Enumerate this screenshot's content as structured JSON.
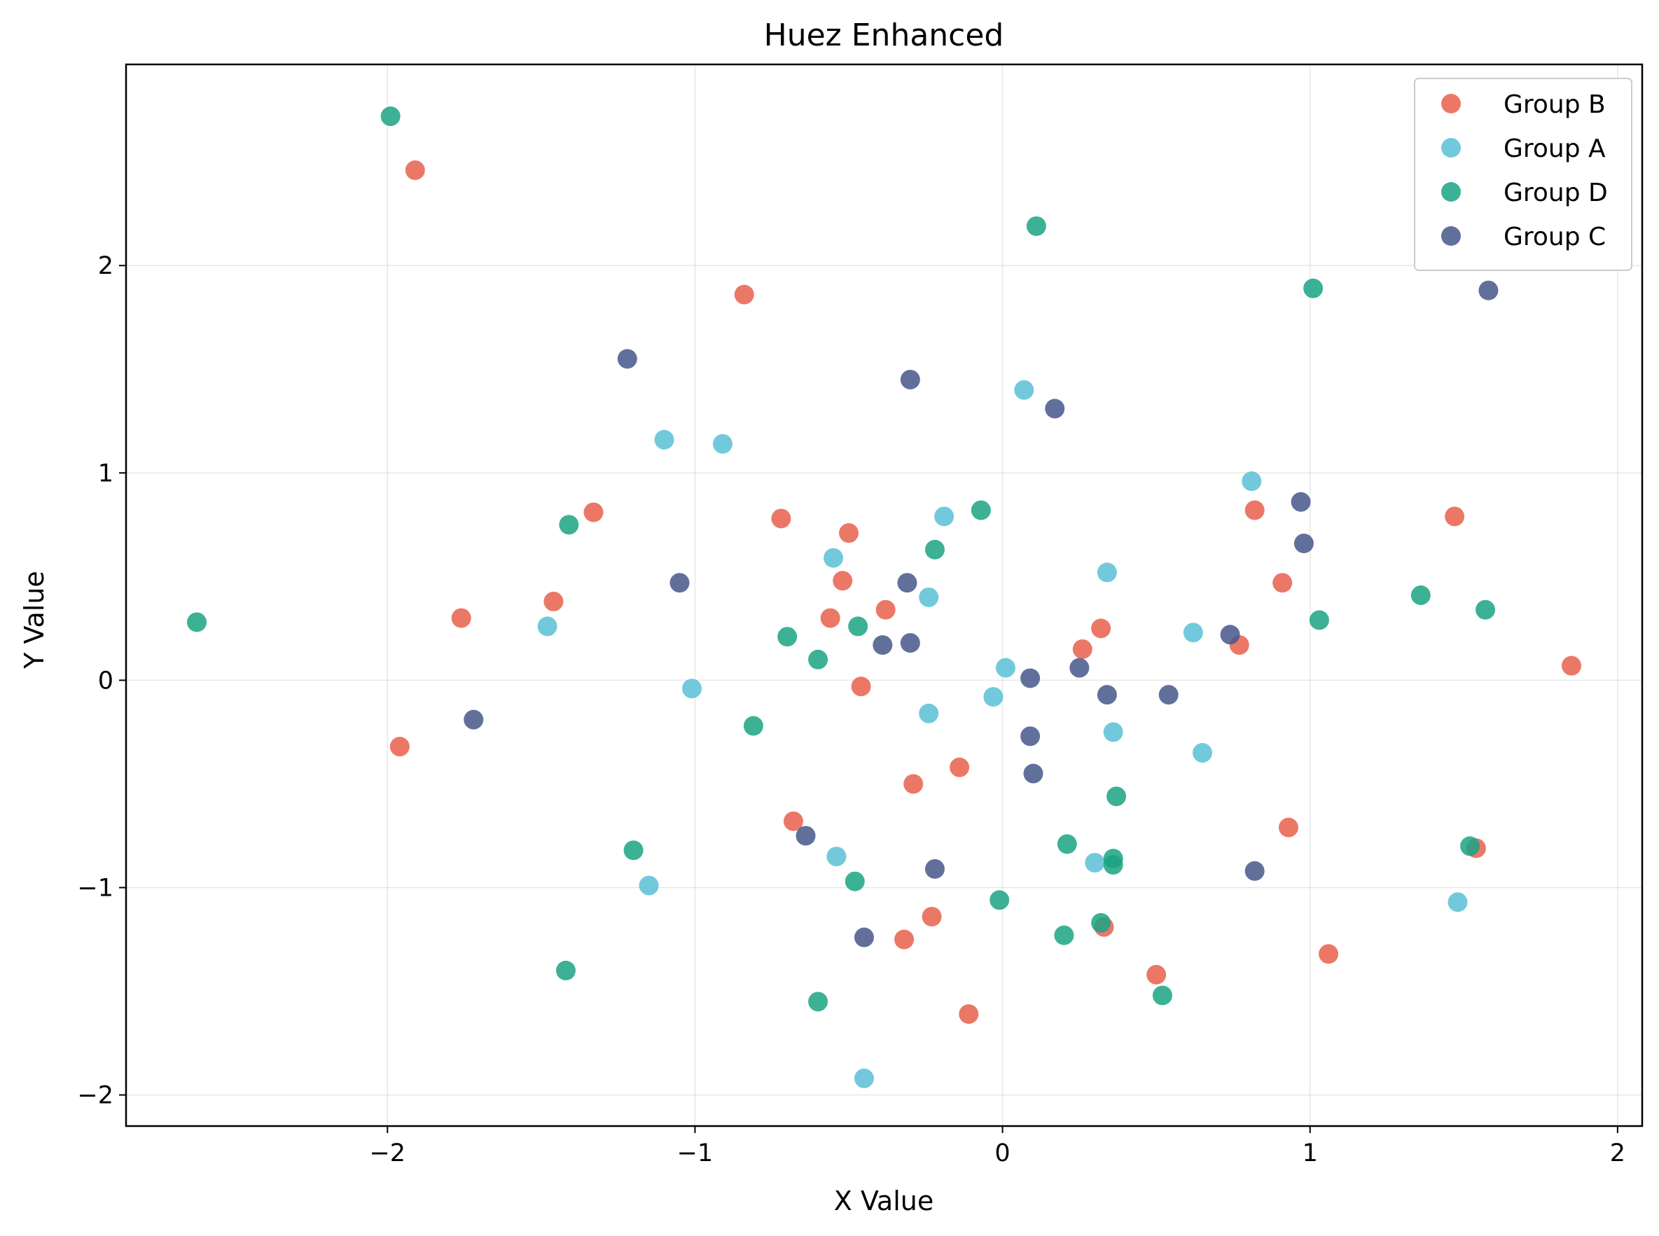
{
  "chart_data": {
    "type": "scatter",
    "title": "Huez Enhanced",
    "xlabel": "X Value",
    "ylabel": "Y Value",
    "xlim": [
      -2.85,
      2.08
    ],
    "ylim": [
      -2.15,
      2.97
    ],
    "xticks": [
      -2,
      -1,
      0,
      1,
      2
    ],
    "yticks": [
      -2,
      -1,
      0,
      1,
      2
    ],
    "xtick_labels": [
      "−2",
      "−1",
      "0",
      "1",
      "2"
    ],
    "ytick_labels": [
      "−2",
      "−1",
      "0",
      "1",
      "2"
    ],
    "grid": true,
    "legend_position": "top-right",
    "series": [
      {
        "name": "Group B",
        "color": "#e8604c",
        "points": [
          [
            -1.91,
            2.46
          ],
          [
            -0.84,
            1.86
          ],
          [
            -1.33,
            0.81
          ],
          [
            -0.72,
            0.78
          ],
          [
            -0.5,
            0.71
          ],
          [
            -0.52,
            0.48
          ],
          [
            -1.46,
            0.38
          ],
          [
            -1.76,
            0.3
          ],
          [
            -0.56,
            0.3
          ],
          [
            -0.38,
            0.34
          ],
          [
            -0.46,
            -0.03
          ],
          [
            -1.96,
            -0.32
          ],
          [
            -0.14,
            -0.42
          ],
          [
            -0.29,
            -0.5
          ],
          [
            -0.68,
            -0.68
          ],
          [
            -0.23,
            -1.14
          ],
          [
            -0.32,
            -1.25
          ],
          [
            -0.11,
            -1.61
          ],
          [
            0.82,
            0.82
          ],
          [
            0.91,
            0.47
          ],
          [
            0.32,
            0.25
          ],
          [
            0.26,
            0.15
          ],
          [
            0.77,
            0.17
          ],
          [
            1.47,
            0.79
          ],
          [
            1.85,
            0.07
          ],
          [
            0.93,
            -0.71
          ],
          [
            1.54,
            -0.81
          ],
          [
            0.33,
            -1.19
          ],
          [
            0.5,
            -1.42
          ],
          [
            1.06,
            -1.32
          ]
        ]
      },
      {
        "name": "Group A",
        "color": "#5bbfd6",
        "points": [
          [
            -1.1,
            1.16
          ],
          [
            -0.91,
            1.14
          ],
          [
            -0.55,
            0.59
          ],
          [
            -0.19,
            0.79
          ],
          [
            -0.24,
            0.4
          ],
          [
            -1.48,
            0.26
          ],
          [
            -1.01,
            -0.04
          ],
          [
            -0.24,
            -0.16
          ],
          [
            0.07,
            1.4
          ],
          [
            0.34,
            0.52
          ],
          [
            0.01,
            0.06
          ],
          [
            -0.03,
            -0.08
          ],
          [
            0.36,
            -0.25
          ],
          [
            0.62,
            0.23
          ],
          [
            0.65,
            -0.35
          ],
          [
            0.81,
            0.96
          ],
          [
            -0.54,
            -0.85
          ],
          [
            0.3,
            -0.88
          ],
          [
            -1.15,
            -0.99
          ],
          [
            -0.45,
            -1.92
          ],
          [
            1.48,
            -1.07
          ]
        ]
      },
      {
        "name": "Group D",
        "color": "#1aa384",
        "points": [
          [
            -1.99,
            2.72
          ],
          [
            0.11,
            2.19
          ],
          [
            1.01,
            1.89
          ],
          [
            -1.41,
            0.75
          ],
          [
            -0.07,
            0.82
          ],
          [
            -0.22,
            0.63
          ],
          [
            -2.62,
            0.28
          ],
          [
            -0.7,
            0.21
          ],
          [
            -0.6,
            0.1
          ],
          [
            -0.47,
            0.26
          ],
          [
            -0.81,
            -0.22
          ],
          [
            1.36,
            0.41
          ],
          [
            1.57,
            0.34
          ],
          [
            1.03,
            0.29
          ],
          [
            0.37,
            -0.56
          ],
          [
            -1.2,
            -0.82
          ],
          [
            -0.48,
            -0.97
          ],
          [
            0.21,
            -0.79
          ],
          [
            0.36,
            -0.86
          ],
          [
            0.36,
            -0.89
          ],
          [
            1.52,
            -0.8
          ],
          [
            -0.01,
            -1.06
          ],
          [
            0.2,
            -1.23
          ],
          [
            0.32,
            -1.17
          ],
          [
            -1.42,
            -1.4
          ],
          [
            -0.6,
            -1.55
          ],
          [
            0.52,
            -1.52
          ]
        ]
      },
      {
        "name": "Group C",
        "color": "#45578a",
        "points": [
          [
            -1.22,
            1.55
          ],
          [
            -0.3,
            1.45
          ],
          [
            0.17,
            1.31
          ],
          [
            1.58,
            1.88
          ],
          [
            -1.05,
            0.47
          ],
          [
            -0.31,
            0.47
          ],
          [
            -0.39,
            0.17
          ],
          [
            -0.3,
            0.18
          ],
          [
            -1.72,
            -0.19
          ],
          [
            0.09,
            0.01
          ],
          [
            0.25,
            0.06
          ],
          [
            0.34,
            -0.07
          ],
          [
            0.54,
            -0.07
          ],
          [
            0.74,
            0.22
          ],
          [
            0.97,
            0.86
          ],
          [
            0.98,
            0.66
          ],
          [
            0.09,
            -0.27
          ],
          [
            0.1,
            -0.45
          ],
          [
            -0.64,
            -0.75
          ],
          [
            -0.22,
            -0.91
          ],
          [
            0.82,
            -0.92
          ],
          [
            -0.45,
            -1.24
          ]
        ]
      }
    ]
  }
}
